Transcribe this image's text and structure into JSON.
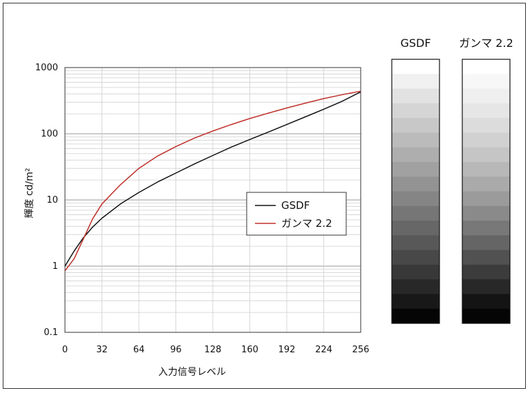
{
  "chart_data": {
    "type": "line",
    "xlabel": "入力信号レベル",
    "ylabel": "輝度 cd/m²",
    "xlim": [
      0,
      256
    ],
    "ylim": [
      0.1,
      1000
    ],
    "yscale": "log",
    "grid": true,
    "legend_position": "center-right",
    "x_ticks": [
      "0",
      "32",
      "64",
      "96",
      "128",
      "160",
      "192",
      "224",
      "256"
    ],
    "y_ticks": [
      {
        "value": 0.1,
        "label": "0.1"
      },
      {
        "value": 1,
        "label": "1"
      },
      {
        "value": 10,
        "label": "10"
      },
      {
        "value": 100,
        "label": "100"
      },
      {
        "value": 1000,
        "label": "1000"
      }
    ],
    "series": [
      {
        "name": "GSDF",
        "color": "#111111",
        "x": [
          0,
          8,
          16,
          24,
          32,
          48,
          64,
          80,
          96,
          112,
          128,
          144,
          160,
          176,
          192,
          208,
          224,
          240,
          256
        ],
        "y": [
          1.0,
          1.7,
          2.7,
          3.9,
          5.3,
          8.7,
          13.0,
          18.6,
          25.5,
          35.0,
          47.0,
          63.0,
          82.0,
          106.0,
          138.0,
          180.0,
          235.0,
          310.0,
          430.0
        ]
      },
      {
        "name": "ガンマ 2.2",
        "color": "#c0302a",
        "x": [
          0,
          8,
          16,
          24,
          32,
          48,
          64,
          80,
          96,
          112,
          128,
          144,
          160,
          176,
          192,
          208,
          224,
          240,
          256
        ],
        "y": [
          0.85,
          1.3,
          2.6,
          5.2,
          8.7,
          17.0,
          30.0,
          46.0,
          64.0,
          86.0,
          110.0,
          138.0,
          170.0,
          205.0,
          245.0,
          290.0,
          340.0,
          390.0,
          440.0
        ]
      }
    ]
  },
  "gray_strips": [
    {
      "title": "GSDF",
      "steps": [
        "#ffffff",
        "#f0f0f0",
        "#e2e2e2",
        "#d5d5d5",
        "#c8c8c8",
        "#bbbbbb",
        "#aeaeae",
        "#a1a1a1",
        "#939393",
        "#858585",
        "#767676",
        "#676767",
        "#585858",
        "#484848",
        "#383838",
        "#282828",
        "#181818",
        "#050505"
      ]
    },
    {
      "title": "ガンマ 2.2",
      "steps": [
        "#ffffff",
        "#f7f7f7",
        "#efefef",
        "#e6e6e6",
        "#dcdcdc",
        "#d1d1d1",
        "#c5c5c5",
        "#b8b8b8",
        "#aaaaaa",
        "#9b9b9b",
        "#8a8a8a",
        "#787878",
        "#656565",
        "#515151",
        "#3c3c3c",
        "#282828",
        "#141414",
        "#050505"
      ]
    }
  ]
}
